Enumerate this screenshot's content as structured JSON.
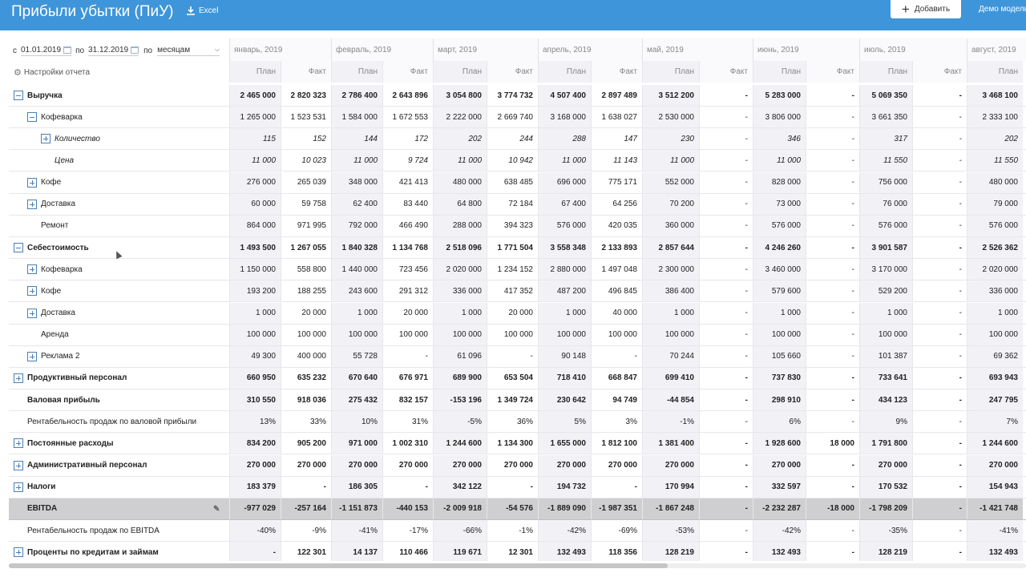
{
  "header": {
    "title": "Прибыли убытки (ПиУ)",
    "excel_label": "Excel",
    "add_label": "Добавить",
    "model_label": "Демо модель"
  },
  "filter": {
    "from_label": "с",
    "from_date": "01.01.2019",
    "to_label": "по",
    "to_date": "31.12.2019",
    "by_label": "по",
    "period": "месяцам"
  },
  "settings_label": "Настройки отчета",
  "months": [
    "январь, 2019",
    "февраль, 2019",
    "март, 2019",
    "апрель, 2019",
    "май, 2019",
    "июнь, 2019",
    "июль, 2019",
    "август, 2019"
  ],
  "plan_label": "План",
  "fact_label": "Факт",
  "rows": [
    {
      "name": "Выручка",
      "level": 0,
      "expander": "minus",
      "style": "bold",
      "values": [
        "2 465 000",
        "2 820 323",
        "2 786 400",
        "2 643 896",
        "3 054 800",
        "3 774 732",
        "4 507 400",
        "2 897 489",
        "3 512 200",
        "-",
        "5 283 000",
        "-",
        "5 069 350",
        "-",
        "3 468 100"
      ]
    },
    {
      "name": "Кофеварка",
      "level": 1,
      "expander": "minus",
      "style": "",
      "values": [
        "1 265 000",
        "1 523 531",
        "1 584 000",
        "1 672 553",
        "2 222 000",
        "2 669 740",
        "3 168 000",
        "1 638 027",
        "2 530 000",
        "-",
        "3 806 000",
        "-",
        "3 661 350",
        "-",
        "2 333 100"
      ]
    },
    {
      "name": "Количество",
      "level": 2,
      "expander": "plus",
      "style": "italic",
      "values": [
        "115",
        "152",
        "144",
        "172",
        "202",
        "244",
        "288",
        "147",
        "230",
        "-",
        "346",
        "-",
        "317",
        "-",
        "202"
      ]
    },
    {
      "name": "Цена",
      "level": 2,
      "expander": "none",
      "style": "italic",
      "values": [
        "11 000",
        "10 023",
        "11 000",
        "9 724",
        "11 000",
        "10 942",
        "11 000",
        "11 143",
        "11 000",
        "-",
        "11 000",
        "-",
        "11 550",
        "-",
        "11 550"
      ]
    },
    {
      "name": "Кофе",
      "level": 1,
      "expander": "plus",
      "style": "",
      "values": [
        "276 000",
        "265 039",
        "348 000",
        "421 413",
        "480 000",
        "638 485",
        "696 000",
        "775 171",
        "552 000",
        "-",
        "828 000",
        "-",
        "756 000",
        "-",
        "480 000"
      ]
    },
    {
      "name": "Доставка",
      "level": 1,
      "expander": "plus",
      "style": "",
      "values": [
        "60 000",
        "59 758",
        "62 400",
        "83 440",
        "64 800",
        "72 184",
        "67 400",
        "64 256",
        "70 200",
        "-",
        "73 000",
        "-",
        "76 000",
        "-",
        "79 000"
      ]
    },
    {
      "name": "Ремонт",
      "level": 1,
      "expander": "none",
      "style": "",
      "values": [
        "864 000",
        "971 995",
        "792 000",
        "466 490",
        "288 000",
        "394 323",
        "576 000",
        "420 035",
        "360 000",
        "-",
        "576 000",
        "-",
        "576 000",
        "-",
        "576 000"
      ]
    },
    {
      "name": "Себестоимость",
      "level": 0,
      "expander": "minus",
      "style": "bold",
      "values": [
        "1 493 500",
        "1 267 055",
        "1 840 328",
        "1 134 768",
        "2 518 096",
        "1 771 504",
        "3 558 348",
        "2 133 893",
        "2 857 644",
        "-",
        "4 246 260",
        "-",
        "3 901 587",
        "-",
        "2 526 362"
      ]
    },
    {
      "name": "Кофеварка",
      "level": 1,
      "expander": "plus",
      "style": "",
      "values": [
        "1 150 000",
        "558 800",
        "1 440 000",
        "723 456",
        "2 020 000",
        "1 234 152",
        "2 880 000",
        "1 497 048",
        "2 300 000",
        "-",
        "3 460 000",
        "-",
        "3 170 000",
        "-",
        "2 020 000"
      ]
    },
    {
      "name": "Кофе",
      "level": 1,
      "expander": "plus",
      "style": "",
      "values": [
        "193 200",
        "188 255",
        "243 600",
        "291 312",
        "336 000",
        "417 352",
        "487 200",
        "496 845",
        "386 400",
        "-",
        "579 600",
        "-",
        "529 200",
        "-",
        "336 000"
      ]
    },
    {
      "name": "Доставка",
      "level": 1,
      "expander": "plus",
      "style": "",
      "values": [
        "1 000",
        "20 000",
        "1 000",
        "20 000",
        "1 000",
        "20 000",
        "1 000",
        "40 000",
        "1 000",
        "-",
        "1 000",
        "-",
        "1 000",
        "-",
        "1 000"
      ]
    },
    {
      "name": "Аренда",
      "level": 1,
      "expander": "none",
      "style": "",
      "values": [
        "100 000",
        "100 000",
        "100 000",
        "100 000",
        "100 000",
        "100 000",
        "100 000",
        "100 000",
        "100 000",
        "-",
        "100 000",
        "-",
        "100 000",
        "-",
        "100 000"
      ]
    },
    {
      "name": "Реклама 2",
      "level": 1,
      "expander": "plus",
      "style": "",
      "values": [
        "49 300",
        "400 000",
        "55 728",
        "-",
        "61 096",
        "-",
        "90 148",
        "-",
        "70 244",
        "-",
        "105 660",
        "-",
        "101 387",
        "-",
        "69 362"
      ]
    },
    {
      "name": "Продуктивный персонал",
      "level": 0,
      "expander": "plus",
      "style": "bold",
      "values": [
        "660 950",
        "635 232",
        "670 640",
        "676 971",
        "689 900",
        "653 504",
        "718 410",
        "668 847",
        "699 410",
        "-",
        "737 830",
        "-",
        "733 641",
        "-",
        "693 943"
      ]
    },
    {
      "name": "Валовая прибыль",
      "level": 0,
      "expander": "none",
      "style": "bold",
      "values": [
        "310 550",
        "918 036",
        "275 432",
        "832 157",
        "-153 196",
        "1 349 724",
        "230 642",
        "94 749",
        "-44 854",
        "-",
        "298 910",
        "-",
        "434 123",
        "-",
        "247 795"
      ]
    },
    {
      "name": "Рентабельность продаж по валовой прибыли",
      "level": 0,
      "expander": "none",
      "style": "",
      "values": [
        "13%",
        "33%",
        "10%",
        "31%",
        "-5%",
        "36%",
        "5%",
        "3%",
        "-1%",
        "-",
        "6%",
        "-",
        "9%",
        "-",
        "7%"
      ]
    },
    {
      "name": "Постоянные расходы",
      "level": 0,
      "expander": "plus",
      "style": "bold",
      "values": [
        "834 200",
        "905 200",
        "971 000",
        "1 002 310",
        "1 244 600",
        "1 134 300",
        "1 655 000",
        "1 812 100",
        "1 381 400",
        "-",
        "1 928 600",
        "18 000",
        "1 791 800",
        "-",
        "1 244 600"
      ]
    },
    {
      "name": "Административный персонал",
      "level": 0,
      "expander": "plus",
      "style": "bold",
      "values": [
        "270 000",
        "270 000",
        "270 000",
        "270 000",
        "270 000",
        "270 000",
        "270 000",
        "270 000",
        "270 000",
        "-",
        "270 000",
        "-",
        "270 000",
        "-",
        "270 000"
      ]
    },
    {
      "name": "Налоги",
      "level": 0,
      "expander": "plus",
      "style": "bold",
      "values": [
        "183 379",
        "-",
        "186 305",
        "-",
        "342 122",
        "-",
        "194 732",
        "-",
        "170 994",
        "-",
        "332 597",
        "-",
        "170 532",
        "-",
        "154 943"
      ]
    },
    {
      "name": "EBITDA",
      "level": 0,
      "expander": "none",
      "style": "ebitda",
      "values": [
        "-977 029",
        "-257 164",
        "-1 151 873",
        "-440 153",
        "-2 009 918",
        "-54 576",
        "-1 889 090",
        "-1 987 351",
        "-1 867 248",
        "-",
        "-2 232 287",
        "-18 000",
        "-1 798 209",
        "-",
        "-1 421 748"
      ]
    },
    {
      "name": "Рентабельность продаж по EBITDA",
      "level": 0,
      "expander": "none",
      "style": "",
      "values": [
        "-40%",
        "-9%",
        "-41%",
        "-17%",
        "-66%",
        "-1%",
        "-42%",
        "-69%",
        "-53%",
        "-",
        "-42%",
        "-",
        "-35%",
        "-",
        "-41%"
      ]
    },
    {
      "name": "Проценты по кредитам и займам",
      "level": 0,
      "expander": "plus",
      "style": "bold",
      "values": [
        "-",
        "122 301",
        "14 137",
        "110 466",
        "119 671",
        "12 301",
        "132 493",
        "118 356",
        "128 219",
        "-",
        "132 493",
        "-",
        "128 219",
        "-",
        "132 493"
      ]
    }
  ],
  "icons": {
    "excel": "download-icon",
    "add": "plus-icon",
    "calendar": "calendar-icon",
    "settings": "gear-icon",
    "edit": "pencil-icon",
    "expand": "plus-square-icon",
    "collapse": "minus-square-icon"
  },
  "colors": {
    "header_bg": "#3e95d9",
    "plan_col_bg": "#f1f1f6",
    "ebitda_bg": "#cfcfd2",
    "expander": "#4a7fb3"
  }
}
